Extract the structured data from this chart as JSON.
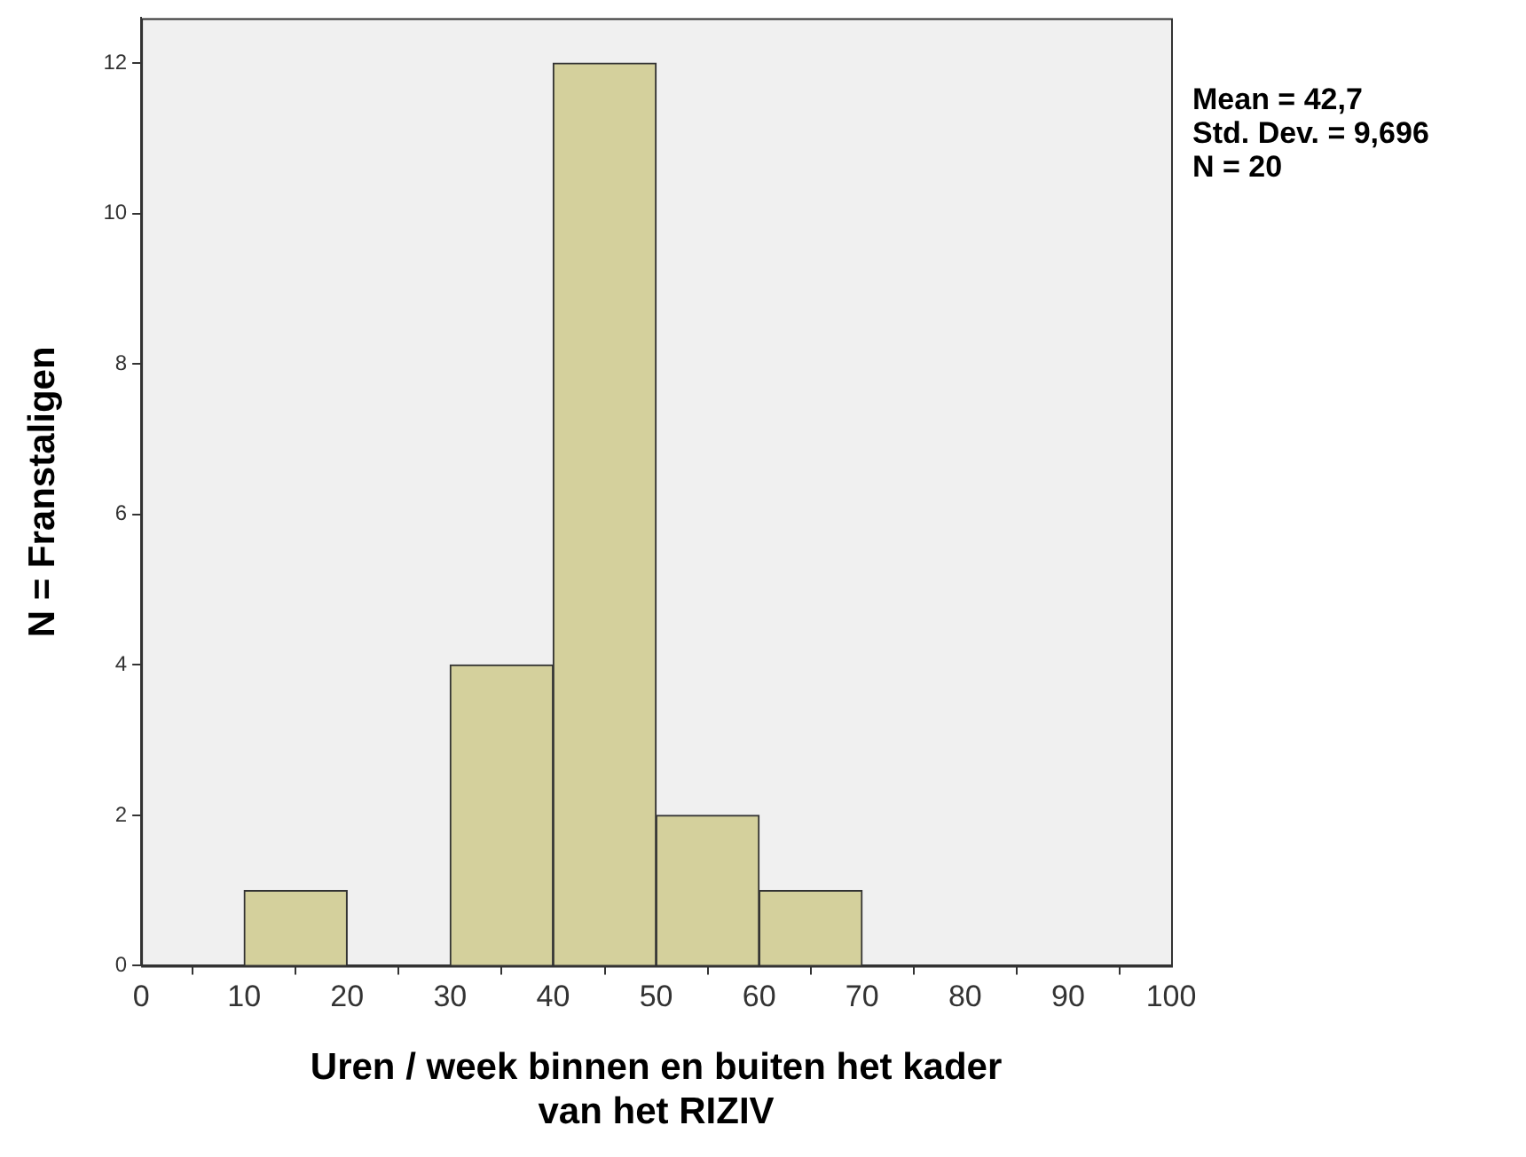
{
  "chart_data": {
    "type": "histogram",
    "xlabel": "Uren / week binnen en buiten het kader\nvan het RIZIV",
    "ylabel": "N = Franstaligen",
    "bins": [
      0,
      10,
      20,
      30,
      40,
      50,
      60,
      70,
      80,
      90,
      100
    ],
    "values": [
      0,
      1,
      0,
      4,
      12,
      2,
      1,
      0,
      0,
      0
    ],
    "color": "#d4d09c",
    "xlim": [
      0,
      100
    ],
    "xticks": [
      0,
      10,
      20,
      30,
      40,
      50,
      60,
      70,
      80,
      90,
      100
    ],
    "ylim": [
      0,
      12.6
    ],
    "yticks": [
      0,
      2,
      4,
      6,
      8,
      10,
      12
    ],
    "grid": false,
    "legend": false,
    "annotations": [
      "Mean = 42,7",
      "Std. Dev. = 9,696",
      "N = 20"
    ]
  }
}
